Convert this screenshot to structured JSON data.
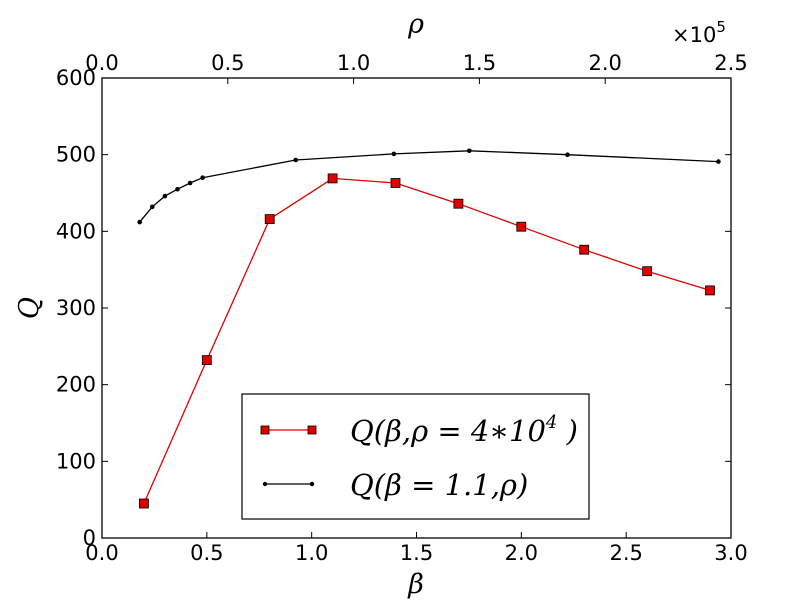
{
  "chart_data": {
    "type": "line",
    "bottom_axis": {
      "label": "β",
      "range": [
        0,
        3.0
      ],
      "ticks": [
        0.0,
        0.5,
        1.0,
        1.5,
        2.0,
        2.5,
        3.0
      ],
      "tick_labels": [
        "0.0",
        "0.5",
        "1.0",
        "1.5",
        "2.0",
        "2.5",
        "3.0"
      ]
    },
    "top_axis": {
      "label": "ρ",
      "range": [
        0,
        250000
      ],
      "ticks": [
        0,
        50000,
        100000,
        150000,
        200000,
        250000
      ],
      "tick_labels": [
        "0.0",
        "0.5",
        "1.0",
        "1.5",
        "2.0",
        "2.5"
      ],
      "multiplier_base": "×10",
      "multiplier_exp": "5"
    },
    "y_axis": {
      "label": "Q",
      "range": [
        0,
        600
      ],
      "ticks": [
        0,
        100,
        200,
        300,
        400,
        500,
        600
      ],
      "tick_labels": [
        "0",
        "100",
        "200",
        "300",
        "400",
        "500",
        "600"
      ]
    },
    "grid": false,
    "legend_position": "bottom-center",
    "series": [
      {
        "name_main": "Q(β,ρ = 4∗10",
        "name_sup": "4",
        "name_end": " )",
        "axis": "bottom",
        "color": "#e00000",
        "marker": "square",
        "x": [
          0.2,
          0.5,
          0.8,
          1.1,
          1.4,
          1.7,
          2.0,
          2.3,
          2.6,
          2.9
        ],
        "y": [
          45,
          232,
          416,
          469,
          463,
          436,
          406,
          376,
          348,
          323
        ]
      },
      {
        "name_main": "Q(β = 1.1,ρ)",
        "axis": "top",
        "color": "#000000",
        "marker": "dot",
        "x": [
          15000,
          20000,
          25000,
          30000,
          35000,
          40000,
          77000,
          116000,
          146000,
          185000,
          245000
        ],
        "y": [
          412,
          432,
          446,
          455,
          463,
          470,
          493,
          501,
          505,
          500,
          491
        ]
      }
    ]
  }
}
